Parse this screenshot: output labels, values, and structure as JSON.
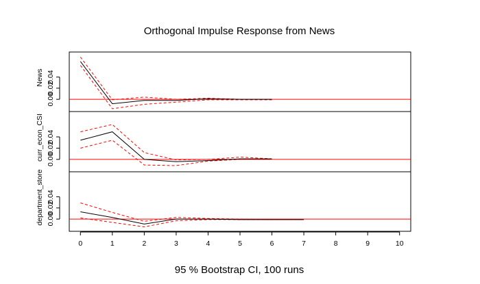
{
  "chart_data": {
    "type": "line",
    "title": "Orthogonal Impulse Response from News",
    "xlabel": "95 % Bootstrap CI,  100 runs",
    "x_ticks": [
      0,
      1,
      2,
      3,
      4,
      5,
      6,
      7,
      8,
      9,
      10
    ],
    "xlim": [
      -0.35,
      10.35
    ],
    "colors": {
      "response": "#000000",
      "ci": "#ff0000",
      "zero_line": "#ff0000"
    },
    "panels": [
      {
        "label": "News",
        "ylim": [
          -0.022,
          0.085
        ],
        "y_ticks": [
          0.0,
          0.02,
          0.04
        ],
        "y_tick_labels": [
          "0.00",
          "0.02",
          "0.04"
        ],
        "x": [
          0,
          1,
          2,
          3,
          4,
          5,
          6
        ],
        "response": [
          0.068,
          -0.008,
          -0.002,
          -0.002,
          0.001,
          0.0,
          0.0
        ],
        "lower": [
          0.061,
          -0.017,
          -0.009,
          -0.005,
          -0.001,
          -0.001,
          -0.001
        ],
        "upper": [
          0.076,
          -0.001,
          0.004,
          0.0,
          0.002,
          0.0,
          0.0
        ]
      },
      {
        "label": "curr_econ_CSI",
        "ylim": [
          -0.022,
          0.085
        ],
        "y_ticks": [
          0.0,
          0.02,
          0.04
        ],
        "y_tick_labels": [
          "0.00",
          "0.02",
          "0.04"
        ],
        "x": [
          0,
          1,
          2,
          3,
          4,
          5,
          6
        ],
        "response": [
          0.034,
          0.049,
          0.0,
          -0.004,
          -0.002,
          0.001,
          0.001
        ],
        "lower": [
          0.02,
          0.034,
          -0.01,
          -0.011,
          -0.003,
          0.0,
          0.0
        ],
        "upper": [
          0.049,
          0.062,
          0.012,
          -0.001,
          0.0,
          0.004,
          0.001
        ]
      },
      {
        "label": "department_store",
        "ylim": [
          -0.022,
          0.085
        ],
        "y_ticks": [
          0.0,
          0.02,
          0.04
        ],
        "y_tick_labels": [
          "0.00",
          "0.02",
          "0.04"
        ],
        "x": [
          0,
          1,
          2,
          3,
          4,
          5,
          6,
          7
        ],
        "response": [
          0.013,
          0.003,
          -0.009,
          0.0,
          0.0,
          -0.001,
          -0.001,
          -0.001
        ],
        "lower": [
          0.002,
          -0.006,
          -0.014,
          -0.003,
          -0.001,
          -0.001,
          -0.001,
          -0.001
        ],
        "upper": [
          0.029,
          0.012,
          -0.004,
          0.003,
          0.001,
          0.0,
          -0.001,
          -0.001
        ]
      }
    ]
  }
}
